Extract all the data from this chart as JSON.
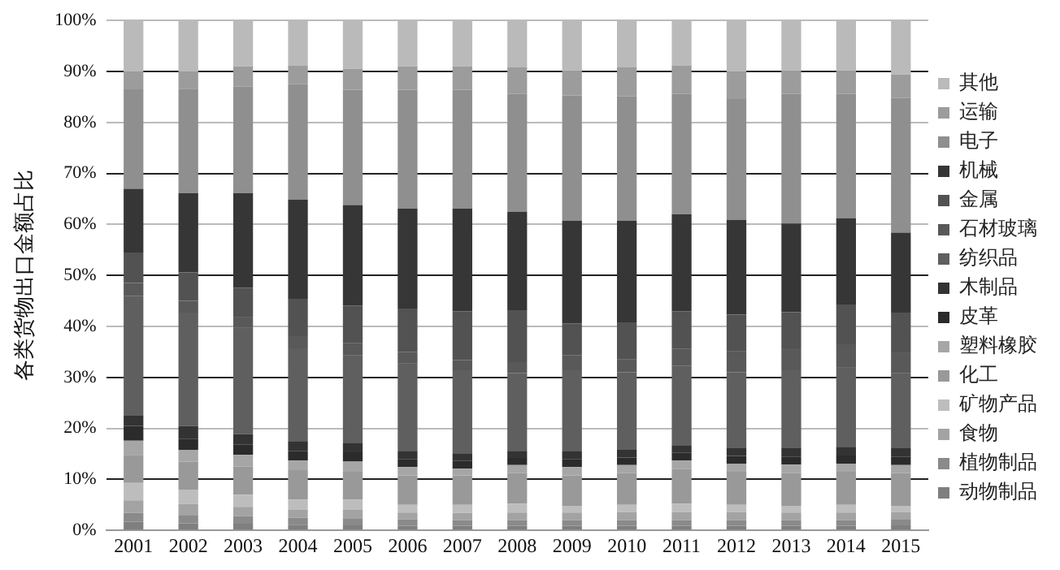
{
  "chart_data": {
    "type": "bar",
    "stacked": true,
    "ylabel": "各类货物出口金额占比",
    "categories": [
      "2001",
      "2002",
      "2003",
      "2004",
      "2005",
      "2006",
      "2007",
      "2008",
      "2009",
      "2010",
      "2011",
      "2012",
      "2013",
      "2014",
      "2015"
    ],
    "ylim": [
      0,
      100
    ],
    "yticks": [
      {
        "value": 0,
        "label": "0%"
      },
      {
        "value": 10,
        "label": "10%"
      },
      {
        "value": 20,
        "label": "20%"
      },
      {
        "value": 30,
        "label": "30%"
      },
      {
        "value": 40,
        "label": "40%"
      },
      {
        "value": 50,
        "label": "50%"
      },
      {
        "value": 60,
        "label": "60%"
      },
      {
        "value": 70,
        "label": "70%"
      },
      {
        "value": 80,
        "label": "80%"
      },
      {
        "value": 90,
        "label": "90%"
      },
      {
        "value": 100,
        "label": "100%"
      }
    ],
    "grid": "y",
    "legend": "right",
    "series": [
      {
        "name": "动物制品",
        "color": "#7f7f7f",
        "values": [
          1.7,
          1.4,
          1.3,
          1.1,
          1.0,
          0.9,
          0.9,
          0.9,
          0.9,
          0.9,
          0.9,
          0.9,
          0.9,
          0.9,
          1.0
        ]
      },
      {
        "name": "植物制品",
        "color": "#8a8a8a",
        "values": [
          1.7,
          1.6,
          1.5,
          1.4,
          1.4,
          1.3,
          1.1,
          1.1,
          1.1,
          1.1,
          1.1,
          1.1,
          1.1,
          1.1,
          1.1
        ]
      },
      {
        "name": "食物",
        "color": "#a3a3a3",
        "values": [
          2.5,
          2.2,
          1.8,
          1.5,
          1.6,
          1.3,
          1.4,
          1.5,
          1.5,
          1.6,
          1.6,
          1.6,
          1.5,
          1.5,
          1.5
        ]
      },
      {
        "name": "矿物产品",
        "color": "#bdbdbd",
        "values": [
          3.4,
          2.8,
          2.4,
          2.0,
          2.0,
          1.5,
          1.6,
          1.7,
          1.3,
          1.4,
          1.6,
          1.4,
          1.3,
          1.5,
          1.2
        ]
      },
      {
        "name": "化工",
        "color": "#999999",
        "values": [
          5.5,
          5.5,
          5.5,
          5.8,
          5.5,
          5.8,
          5.8,
          6.0,
          6.0,
          6.2,
          6.8,
          6.5,
          6.4,
          6.5,
          6.4
        ]
      },
      {
        "name": "塑料橡胶",
        "color": "#a6a6a6",
        "values": [
          2.8,
          2.3,
          2.3,
          1.9,
          2.0,
          1.6,
          1.3,
          1.6,
          1.6,
          1.6,
          1.7,
          1.6,
          1.7,
          1.6,
          1.6
        ]
      },
      {
        "name": "皮革",
        "color": "#2b2b2b",
        "values": [
          2.9,
          2.2,
          2.0,
          1.8,
          1.8,
          1.6,
          1.5,
          1.4,
          1.6,
          1.5,
          1.5,
          1.5,
          1.6,
          1.6,
          1.6
        ]
      },
      {
        "name": "木制品",
        "color": "#333333",
        "values": [
          2.0,
          2.5,
          2.1,
          2.0,
          1.9,
          1.6,
          1.5,
          1.4,
          1.6,
          1.5,
          1.5,
          1.5,
          1.6,
          1.7,
          1.7
        ]
      },
      {
        "name": "纺织品",
        "color": "#5f5f5f",
        "values": [
          23.5,
          22.2,
          20.8,
          18.2,
          17.1,
          17.1,
          16.3,
          15.3,
          15.8,
          15.2,
          15.6,
          14.9,
          15.3,
          15.5,
          14.7
        ]
      },
      {
        "name": "石材玻璃",
        "color": "#595959",
        "values": [
          2.5,
          2.3,
          2.2,
          2.4,
          2.4,
          2.3,
          2.0,
          2.1,
          2.9,
          2.6,
          3.3,
          4.2,
          4.3,
          4.6,
          4.1
        ]
      },
      {
        "name": "金属",
        "color": "#525252",
        "values": [
          6.0,
          5.6,
          5.7,
          7.3,
          7.4,
          8.5,
          9.6,
          10.2,
          6.3,
          7.2,
          7.4,
          7.1,
          7.1,
          7.8,
          7.8
        ]
      },
      {
        "name": "机械",
        "color": "#363636",
        "values": [
          12.5,
          15.5,
          18.5,
          19.5,
          19.7,
          19.6,
          20.1,
          19.3,
          20.1,
          19.9,
          19.0,
          18.6,
          17.4,
          16.9,
          15.7
        ]
      },
      {
        "name": "电子",
        "color": "#8f8f8f",
        "values": [
          19.5,
          20.5,
          20.9,
          22.6,
          22.6,
          23.3,
          23.3,
          23.1,
          24.6,
          24.4,
          23.6,
          23.7,
          25.4,
          24.4,
          26.4
        ]
      },
      {
        "name": "运输",
        "color": "#9c9c9c",
        "values": [
          3.5,
          3.4,
          4.0,
          3.7,
          4.1,
          4.6,
          4.6,
          5.2,
          4.9,
          5.7,
          5.6,
          5.4,
          4.6,
          4.6,
          4.6
        ]
      },
      {
        "name": "其他",
        "color": "#bababa",
        "values": [
          10.0,
          10.0,
          9.0,
          8.8,
          9.5,
          9.0,
          9.0,
          9.2,
          9.8,
          9.2,
          8.8,
          10.0,
          9.8,
          9.8,
          10.6
        ]
      }
    ]
  }
}
